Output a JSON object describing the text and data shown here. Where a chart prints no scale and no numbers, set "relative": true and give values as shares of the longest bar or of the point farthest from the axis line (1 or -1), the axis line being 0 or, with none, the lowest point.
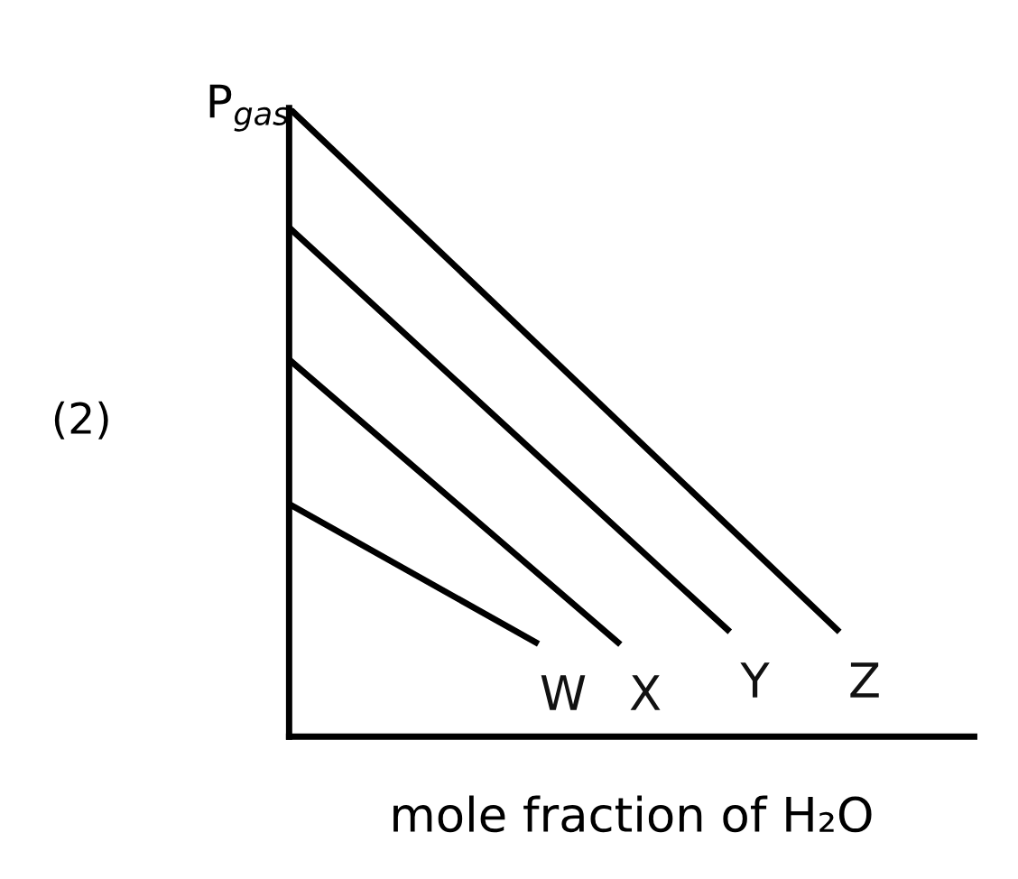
{
  "chart_data": {
    "type": "line",
    "relative": true,
    "ylabel": "P$_{gas}$",
    "xlabel": "mole fraction of H₂O",
    "annotations": [
      "(2)"
    ],
    "categories": [
      null,
      null,
      null,
      null,
      null,
      null,
      null,
      null,
      null,
      null,
      null,
      null,
      null,
      null,
      null,
      null,
      null,
      null,
      null,
      null,
      null,
      null,
      null,
      null,
      null,
      null
    ],
    "series": [
      {
        "name": "W",
        "color": "#000000",
        "values": [
          0.37,
          null,
          null,
          null,
          null,
          null,
          null,
          null,
          null,
          0.15,
          null,
          null,
          null,
          null,
          null,
          null,
          null,
          null,
          null,
          null,
          null,
          null,
          null,
          null,
          null,
          null
        ]
      },
      {
        "name": "X",
        "color": "#000000",
        "values": [
          0.6,
          null,
          null,
          null,
          null,
          null,
          null,
          null,
          null,
          null,
          null,
          null,
          0.15,
          null,
          null,
          null,
          null,
          null,
          null,
          null,
          null,
          null,
          null,
          null,
          null,
          null
        ]
      },
      {
        "name": "Y",
        "color": "#000000",
        "values": [
          0.81,
          null,
          null,
          null,
          null,
          null,
          null,
          null,
          null,
          null,
          null,
          null,
          null,
          null,
          null,
          null,
          0.17,
          null,
          null,
          null,
          null,
          null,
          null,
          null,
          null,
          null
        ]
      },
      {
        "name": "Z",
        "color": "#000000",
        "values": [
          1,
          null,
          null,
          null,
          null,
          null,
          null,
          null,
          null,
          null,
          null,
          null,
          null,
          null,
          null,
          null,
          null,
          null,
          null,
          null,
          0.17,
          null,
          null,
          null,
          null,
          null
        ]
      }
    ],
    "legend": false,
    "marker": "none",
    "line_style": "solid"
  }
}
